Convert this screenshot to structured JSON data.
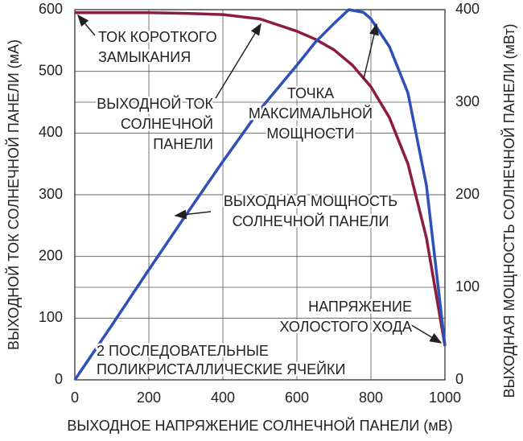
{
  "chart_data": {
    "type": "line",
    "x_label": "ВЫХОДНОЕ НАПРЯЖЕНИЕ СОЛНЕЧНОЙ ПАНЕЛИ (мВ)",
    "y_label": "ВЫХОДНОЙ ТОК СОЛНЕЧНОЙ ПАНЕЛИ (мА)",
    "y2_label": "ВЫХОДНАЯ МОЩНОСТЬ СОЛНЕЧНОЙ ПАНЕЛИ (мВт)",
    "xlim": [
      0,
      1000
    ],
    "xticks": [
      0,
      200,
      400,
      600,
      800,
      1000
    ],
    "ylim": [
      0,
      600
    ],
    "yticks": [
      0,
      100,
      200,
      300,
      400,
      500,
      600
    ],
    "y2lim": [
      0,
      400
    ],
    "y2ticks": [
      0,
      100,
      200,
      300,
      400
    ],
    "grid": true,
    "series": [
      {
        "color": "#8c1d3c",
        "x": [
          0,
          100,
          200,
          300,
          400,
          500,
          600,
          650,
          700,
          750,
          800,
          850,
          900,
          950,
          1000
        ],
        "values": [
          595,
          595,
          595,
          594,
          592,
          585,
          565,
          552,
          535,
          510,
          475,
          425,
          350,
          230,
          55
        ]
      },
      {
        "color": "#2f50b8",
        "axis": "y2",
        "x": [
          0,
          100,
          200,
          300,
          400,
          500,
          600,
          650,
          700,
          740,
          780,
          800,
          850,
          900,
          950,
          1000
        ],
        "values": [
          0,
          59,
          119,
          178,
          236,
          292,
          340,
          365,
          385,
          400,
          397,
          390,
          360,
          310,
          210,
          37
        ]
      }
    ],
    "annotations": [
      {
        "lines": [
          "ТОК КОРОТКОГО",
          "ЗАМЫКАНИЯ"
        ]
      },
      {
        "lines": [
          "ВЫХОДНОЙ ТОК",
          "СОЛНЕЧНОЙ",
          "ПАНЕЛИ"
        ]
      },
      {
        "lines": [
          "ТОЧКА",
          "МАКСИМАЛЬНОЙ",
          "МОЩНОСТИ"
        ]
      },
      {
        "lines": [
          "ВЫХОДНАЯ МОЩНОСТЬ",
          "СОЛНЕЧНОЙ ПАНЕЛИ"
        ]
      },
      {
        "lines": [
          "НАПРЯЖЕНИЕ",
          "ХОЛОСТОГО ХОДА"
        ]
      },
      {
        "lines": [
          "2 ПОСЛЕДОВАТЕЛЬНЫЕ",
          "ПОЛИКРИСТАЛЛИЧЕСКИЕ ЯЧЕЙКИ"
        ]
      }
    ]
  }
}
